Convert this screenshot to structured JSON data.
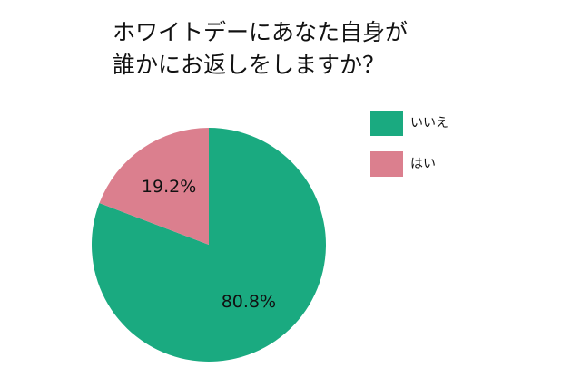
{
  "chart_data": {
    "type": "pie",
    "title": [
      "ホワイトデーにあなた自身が",
      "誰かにお返しをしますか？"
    ],
    "categories": [
      "いいえ",
      "はい"
    ],
    "values": [
      80.8,
      19.2
    ],
    "value_labels": [
      "80.8%",
      "19.2%"
    ],
    "colors": [
      "#1aaa80",
      "#db7f8e"
    ],
    "legend": "top-right"
  }
}
